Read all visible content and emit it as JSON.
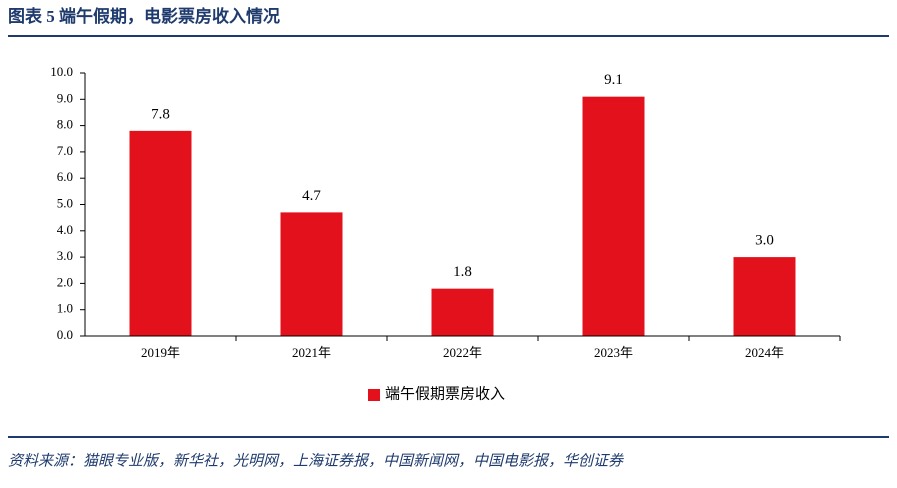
{
  "chart_data": {
    "type": "bar",
    "title": "图表 5   端午假期，电影票房收入情况",
    "source": "资料来源：猫眼专业版，新华社，光明网，上海证券报，中国新闻网，中国电影报，华创证券",
    "categories": [
      "2019年",
      "2021年",
      "2022年",
      "2023年",
      "2024年"
    ],
    "series": [
      {
        "name": "端午假期票房收入",
        "color": "#e3111c",
        "values": [
          7.8,
          4.7,
          1.8,
          9.1,
          3.0
        ],
        "value_labels": [
          "7.8",
          "4.7",
          "1.8",
          "9.1",
          "3.0"
        ]
      }
    ],
    "ylim": [
      0,
      10
    ],
    "yticks": [
      {
        "value": 0,
        "label": "0.0"
      },
      {
        "value": 1,
        "label": "1.0"
      },
      {
        "value": 2,
        "label": "2.0"
      },
      {
        "value": 3,
        "label": "3.0"
      },
      {
        "value": 4,
        "label": "4.0"
      },
      {
        "value": 5,
        "label": "5.0"
      },
      {
        "value": 6,
        "label": "6.0"
      },
      {
        "value": 7,
        "label": "7.0"
      },
      {
        "value": 8,
        "label": "8.0"
      },
      {
        "value": 9,
        "label": "9.0"
      },
      {
        "value": 10,
        "label": "10.0"
      }
    ],
    "grid": false,
    "legend": "bottom"
  }
}
